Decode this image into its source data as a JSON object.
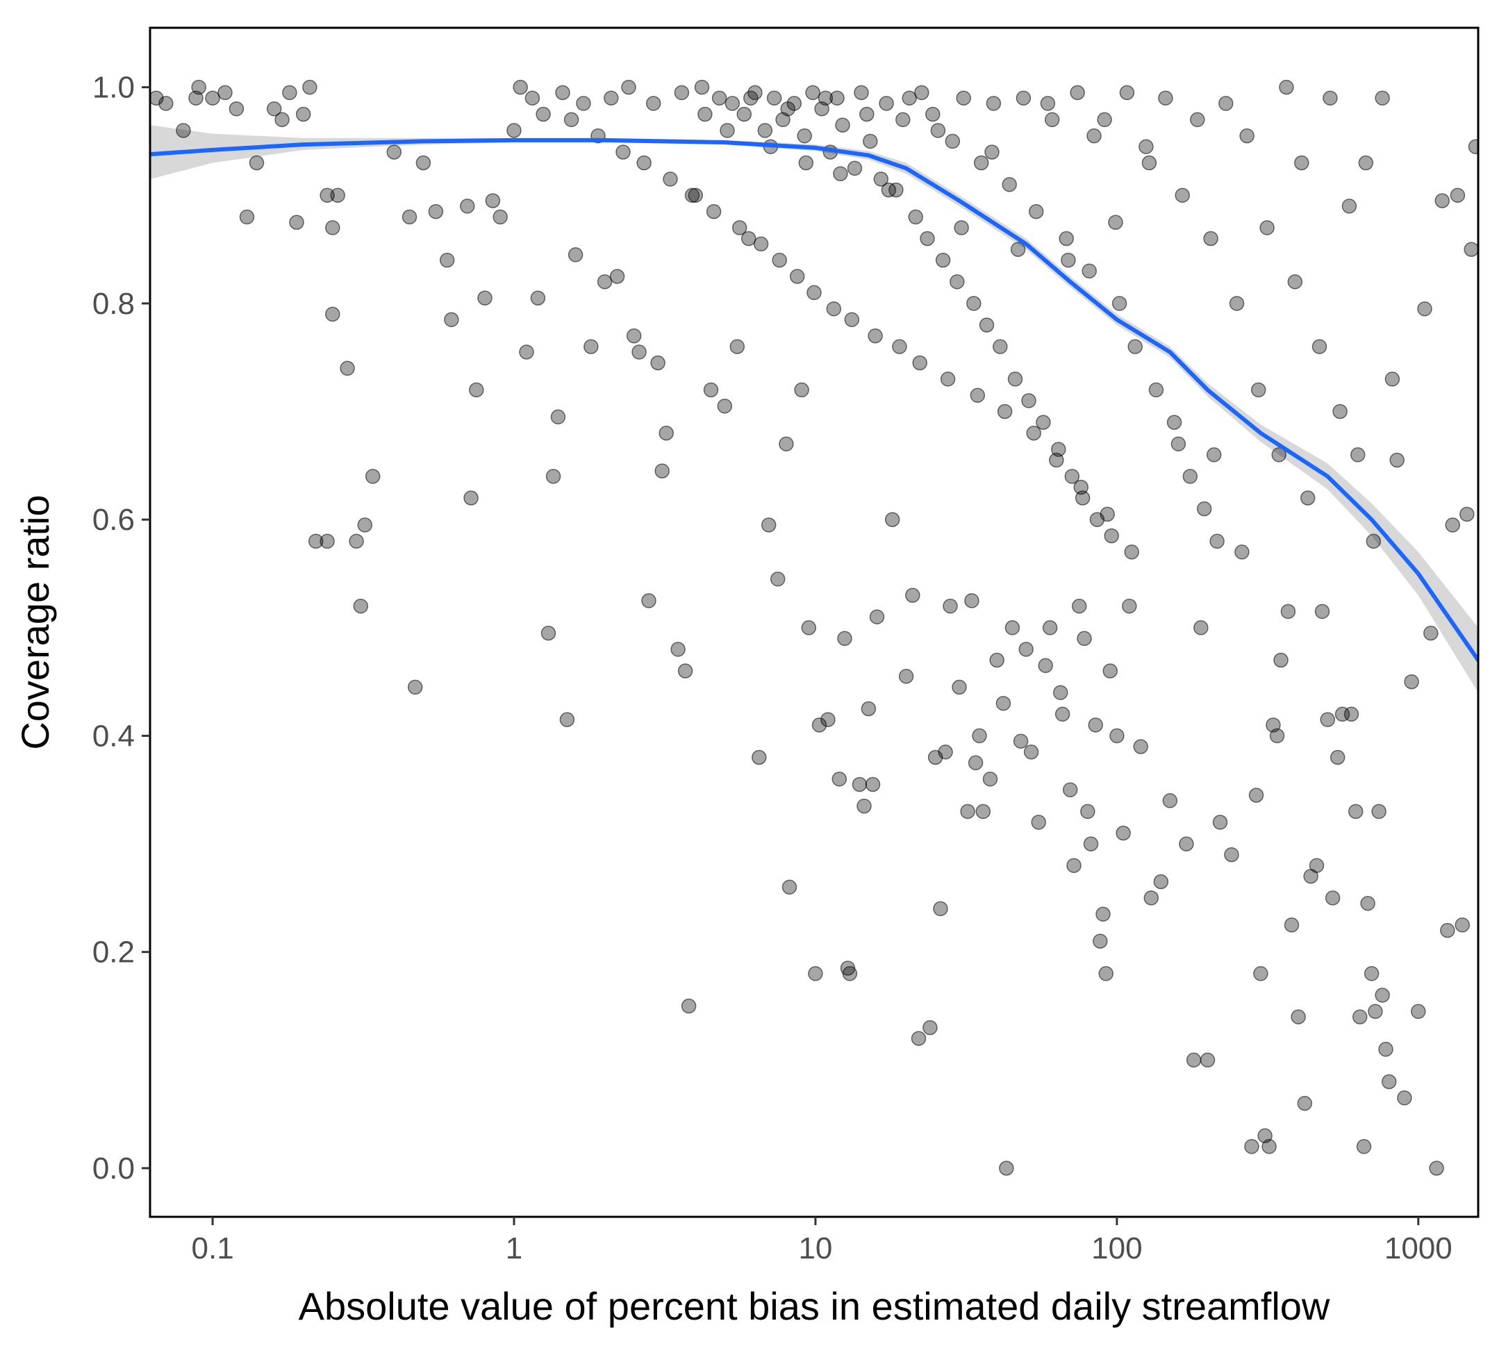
{
  "chart_data": {
    "type": "scatter",
    "xlabel": "Absolute value of percent bias in estimated daily streamflow",
    "ylabel": "Coverage ratio",
    "x_scale": "log10",
    "xlim": [
      0.062,
      1580
    ],
    "ylim": [
      -0.045,
      1.055
    ],
    "x_ticks": [
      0.1,
      1,
      10,
      100,
      1000
    ],
    "x_tick_labels": [
      "0.1",
      "1",
      "10",
      "100",
      "1000"
    ],
    "y_ticks": [
      0.0,
      0.2,
      0.4,
      0.6,
      0.8,
      1.0
    ],
    "y_tick_labels": [
      "0.0",
      "0.2",
      "0.4",
      "0.6",
      "0.8",
      "1.0"
    ],
    "grid": false,
    "legend": "none",
    "point_color": "#000000",
    "point_opacity": 0.35,
    "smooth_color": "#1a66ff",
    "ribbon_color": "#c8c8c8",
    "smooth_curve": {
      "x": [
        0.062,
        0.1,
        0.2,
        0.5,
        1,
        2,
        5,
        10,
        15,
        20,
        30,
        50,
        70,
        100,
        150,
        200,
        300,
        500,
        700,
        1000,
        1580
      ],
      "y": [
        0.938,
        0.942,
        0.947,
        0.95,
        0.951,
        0.951,
        0.949,
        0.944,
        0.937,
        0.925,
        0.895,
        0.855,
        0.82,
        0.785,
        0.755,
        0.72,
        0.68,
        0.64,
        0.6,
        0.55,
        0.47
      ],
      "lower": [
        0.915,
        0.93,
        0.942,
        0.947,
        0.949,
        0.949,
        0.947,
        0.941,
        0.933,
        0.92,
        0.89,
        0.85,
        0.815,
        0.78,
        0.75,
        0.714,
        0.672,
        0.628,
        0.585,
        0.53,
        0.44
      ],
      "upper": [
        0.965,
        0.957,
        0.953,
        0.953,
        0.953,
        0.953,
        0.951,
        0.947,
        0.941,
        0.93,
        0.9,
        0.86,
        0.825,
        0.79,
        0.76,
        0.726,
        0.688,
        0.652,
        0.615,
        0.57,
        0.5
      ]
    },
    "points": [
      [
        0.065,
        0.99
      ],
      [
        0.07,
        0.985
      ],
      [
        0.08,
        0.96
      ],
      [
        0.088,
        0.99
      ],
      [
        0.09,
        1.0
      ],
      [
        0.1,
        0.99
      ],
      [
        0.11,
        0.995
      ],
      [
        0.12,
        0.98
      ],
      [
        0.13,
        0.88
      ],
      [
        0.14,
        0.93
      ],
      [
        0.16,
        0.98
      ],
      [
        0.17,
        0.97
      ],
      [
        0.18,
        0.995
      ],
      [
        0.19,
        0.875
      ],
      [
        0.2,
        0.975
      ],
      [
        0.21,
        1.0
      ],
      [
        0.22,
        0.58
      ],
      [
        0.24,
        0.58
      ],
      [
        0.24,
        0.9
      ],
      [
        0.25,
        0.87
      ],
      [
        0.25,
        0.79
      ],
      [
        0.26,
        0.9
      ],
      [
        0.28,
        0.74
      ],
      [
        0.3,
        0.58
      ],
      [
        0.31,
        0.52
      ],
      [
        0.32,
        0.595
      ],
      [
        0.34,
        0.64
      ],
      [
        0.4,
        0.94
      ],
      [
        0.45,
        0.88
      ],
      [
        0.47,
        0.445
      ],
      [
        0.5,
        0.93
      ],
      [
        0.55,
        0.885
      ],
      [
        0.6,
        0.84
      ],
      [
        0.62,
        0.785
      ],
      [
        0.7,
        0.89
      ],
      [
        0.72,
        0.62
      ],
      [
        0.75,
        0.72
      ],
      [
        0.8,
        0.805
      ],
      [
        0.85,
        0.895
      ],
      [
        0.9,
        0.88
      ],
      [
        1.0,
        0.96
      ],
      [
        1.1,
        0.755
      ],
      [
        1.2,
        0.805
      ],
      [
        1.3,
        0.495
      ],
      [
        1.35,
        0.64
      ],
      [
        1.4,
        0.695
      ],
      [
        1.5,
        0.415
      ],
      [
        1.6,
        0.845
      ],
      [
        1.8,
        0.76
      ],
      [
        2.0,
        0.82
      ],
      [
        2.2,
        0.825
      ],
      [
        2.5,
        0.77
      ],
      [
        2.6,
        0.755
      ],
      [
        2.8,
        0.525
      ],
      [
        3.0,
        0.745
      ],
      [
        3.1,
        0.645
      ],
      [
        3.2,
        0.68
      ],
      [
        3.5,
        0.48
      ],
      [
        3.7,
        0.46
      ],
      [
        3.8,
        0.15
      ],
      [
        4.0,
        0.9
      ],
      [
        4.5,
        0.72
      ],
      [
        5.0,
        0.705
      ],
      [
        5.5,
        0.76
      ],
      [
        6.0,
        0.86
      ],
      [
        6.5,
        0.38
      ],
      [
        7.0,
        0.595
      ],
      [
        7.5,
        0.545
      ],
      [
        8.0,
        0.67
      ],
      [
        8.2,
        0.26
      ],
      [
        9.0,
        0.72
      ],
      [
        9.5,
        0.5
      ],
      [
        10.0,
        0.18
      ],
      [
        10.3,
        0.41
      ],
      [
        11.0,
        0.415
      ],
      [
        12.0,
        0.36
      ],
      [
        12.5,
        0.49
      ],
      [
        12.8,
        0.185
      ],
      [
        13.0,
        0.18
      ],
      [
        14.0,
        0.355
      ],
      [
        14.5,
        0.335
      ],
      [
        15.0,
        0.425
      ],
      [
        15.5,
        0.355
      ],
      [
        16.0,
        0.51
      ],
      [
        18.0,
        0.6
      ],
      [
        20.0,
        0.455
      ],
      [
        21.0,
        0.53
      ],
      [
        22.0,
        0.12
      ],
      [
        24.0,
        0.13
      ],
      [
        25.0,
        0.38
      ],
      [
        26.0,
        0.24
      ],
      [
        27.0,
        0.385
      ],
      [
        28.0,
        0.52
      ],
      [
        30.0,
        0.445
      ],
      [
        32.0,
        0.33
      ],
      [
        33.0,
        0.525
      ],
      [
        34.0,
        0.375
      ],
      [
        35.0,
        0.4
      ],
      [
        36.0,
        0.33
      ],
      [
        38.0,
        0.36
      ],
      [
        40.0,
        0.47
      ],
      [
        42.0,
        0.43
      ],
      [
        43.0,
        0.0
      ],
      [
        45.0,
        0.5
      ],
      [
        48.0,
        0.395
      ],
      [
        50.0,
        0.48
      ],
      [
        52.0,
        0.385
      ],
      [
        55.0,
        0.32
      ],
      [
        58.0,
        0.465
      ],
      [
        60.0,
        0.5
      ],
      [
        65.0,
        0.44
      ],
      [
        66.0,
        0.42
      ],
      [
        70.0,
        0.35
      ],
      [
        72.0,
        0.28
      ],
      [
        75.0,
        0.52
      ],
      [
        78.0,
        0.49
      ],
      [
        80.0,
        0.33
      ],
      [
        82.0,
        0.3
      ],
      [
        85.0,
        0.41
      ],
      [
        88.0,
        0.21
      ],
      [
        90.0,
        0.235
      ],
      [
        92.0,
        0.18
      ],
      [
        95.0,
        0.46
      ],
      [
        100.0,
        0.4
      ],
      [
        105.0,
        0.31
      ],
      [
        110.0,
        0.52
      ],
      [
        120.0,
        0.39
      ],
      [
        130.0,
        0.25
      ],
      [
        140.0,
        0.265
      ],
      [
        150.0,
        0.34
      ],
      [
        160.0,
        0.67
      ],
      [
        170.0,
        0.3
      ],
      [
        180.0,
        0.1
      ],
      [
        190.0,
        0.5
      ],
      [
        200.0,
        0.1
      ],
      [
        210.0,
        0.66
      ],
      [
        220.0,
        0.32
      ],
      [
        240.0,
        0.29
      ],
      [
        260.0,
        0.57
      ],
      [
        280.0,
        0.02
      ],
      [
        290.0,
        0.345
      ],
      [
        300.0,
        0.18
      ],
      [
        310.0,
        0.03
      ],
      [
        320.0,
        0.02
      ],
      [
        330.0,
        0.41
      ],
      [
        340.0,
        0.4
      ],
      [
        350.0,
        0.47
      ],
      [
        370.0,
        0.515
      ],
      [
        380.0,
        0.225
      ],
      [
        400.0,
        0.14
      ],
      [
        420.0,
        0.06
      ],
      [
        440.0,
        0.27
      ],
      [
        460.0,
        0.28
      ],
      [
        480.0,
        0.515
      ],
      [
        500.0,
        0.415
      ],
      [
        520.0,
        0.25
      ],
      [
        540.0,
        0.38
      ],
      [
        560.0,
        0.42
      ],
      [
        600.0,
        0.42
      ],
      [
        620.0,
        0.33
      ],
      [
        640.0,
        0.14
      ],
      [
        660.0,
        0.02
      ],
      [
        680.0,
        0.245
      ],
      [
        700.0,
        0.18
      ],
      [
        720.0,
        0.145
      ],
      [
        740.0,
        0.33
      ],
      [
        760.0,
        0.16
      ],
      [
        780.0,
        0.11
      ],
      [
        800.0,
        0.08
      ],
      [
        850.0,
        0.655
      ],
      [
        900.0,
        0.065
      ],
      [
        950.0,
        0.45
      ],
      [
        1000.0,
        0.145
      ],
      [
        1050.0,
        0.795
      ],
      [
        1100.0,
        0.495
      ],
      [
        1150.0,
        0.0
      ],
      [
        1200.0,
        0.895
      ],
      [
        1250.0,
        0.22
      ],
      [
        1300.0,
        0.595
      ],
      [
        1350.0,
        0.9
      ],
      [
        1400.0,
        0.225
      ],
      [
        1450.0,
        0.605
      ],
      [
        1500.0,
        0.85
      ],
      [
        1550.0,
        0.945
      ],
      [
        4.2,
        1.0
      ],
      [
        4.8,
        0.99
      ],
      [
        5.3,
        0.985
      ],
      [
        5.8,
        0.975
      ],
      [
        6.3,
        0.995
      ],
      [
        6.8,
        0.96
      ],
      [
        7.3,
        0.99
      ],
      [
        7.8,
        0.97
      ],
      [
        8.5,
        0.985
      ],
      [
        9.2,
        0.955
      ],
      [
        9.8,
        0.995
      ],
      [
        10.5,
        0.98
      ],
      [
        11.2,
        0.94
      ],
      [
        11.8,
        0.99
      ],
      [
        12.3,
        0.965
      ],
      [
        13.5,
        0.925
      ],
      [
        14.2,
        0.995
      ],
      [
        15.2,
        0.95
      ],
      [
        16.5,
        0.915
      ],
      [
        17.2,
        0.985
      ],
      [
        18.5,
        0.905
      ],
      [
        19.5,
        0.97
      ],
      [
        21.5,
        0.88
      ],
      [
        22.5,
        0.995
      ],
      [
        23.5,
        0.86
      ],
      [
        24.5,
        0.975
      ],
      [
        26.5,
        0.84
      ],
      [
        28.5,
        0.95
      ],
      [
        29.5,
        0.82
      ],
      [
        31.0,
        0.99
      ],
      [
        33.5,
        0.8
      ],
      [
        35.5,
        0.93
      ],
      [
        37.0,
        0.78
      ],
      [
        39.0,
        0.985
      ],
      [
        41.0,
        0.76
      ],
      [
        44.0,
        0.91
      ],
      [
        46.0,
        0.73
      ],
      [
        49.0,
        0.99
      ],
      [
        51.0,
        0.71
      ],
      [
        54.0,
        0.885
      ],
      [
        57.0,
        0.69
      ],
      [
        61.0,
        0.97
      ],
      [
        64.0,
        0.665
      ],
      [
        68.0,
        0.86
      ],
      [
        71.0,
        0.64
      ],
      [
        74.0,
        0.995
      ],
      [
        77.0,
        0.62
      ],
      [
        81.0,
        0.83
      ],
      [
        86.0,
        0.6
      ],
      [
        91.0,
        0.97
      ],
      [
        96.0,
        0.585
      ],
      [
        102.0,
        0.8
      ],
      [
        108.0,
        0.995
      ],
      [
        115.0,
        0.76
      ],
      [
        125.0,
        0.945
      ],
      [
        135.0,
        0.72
      ],
      [
        145.0,
        0.99
      ],
      [
        155.0,
        0.69
      ],
      [
        165.0,
        0.9
      ],
      [
        175.0,
        0.64
      ],
      [
        185.0,
        0.97
      ],
      [
        195.0,
        0.61
      ],
      [
        205.0,
        0.86
      ],
      [
        215.0,
        0.58
      ],
      [
        230.0,
        0.985
      ],
      [
        250.0,
        0.8
      ],
      [
        270.0,
        0.955
      ],
      [
        295.0,
        0.72
      ],
      [
        315.0,
        0.87
      ],
      [
        345.0,
        0.66
      ],
      [
        365.0,
        1.0
      ],
      [
        390.0,
        0.82
      ],
      [
        410.0,
        0.93
      ],
      [
        430.0,
        0.62
      ],
      [
        470.0,
        0.76
      ],
      [
        510.0,
        0.99
      ],
      [
        550.0,
        0.7
      ],
      [
        590.0,
        0.89
      ],
      [
        630.0,
        0.66
      ],
      [
        670.0,
        0.93
      ],
      [
        710.0,
        0.58
      ],
      [
        760.0,
        0.99
      ],
      [
        820.0,
        0.73
      ],
      [
        1.05,
        1.0
      ],
      [
        1.15,
        0.99
      ],
      [
        1.25,
        0.975
      ],
      [
        1.45,
        0.995
      ],
      [
        1.55,
        0.97
      ],
      [
        1.7,
        0.985
      ],
      [
        1.9,
        0.955
      ],
      [
        2.1,
        0.99
      ],
      [
        2.3,
        0.94
      ],
      [
        2.4,
        1.0
      ],
      [
        2.7,
        0.93
      ],
      [
        2.9,
        0.985
      ],
      [
        3.3,
        0.915
      ],
      [
        3.6,
        0.995
      ],
      [
        3.9,
        0.9
      ],
      [
        4.3,
        0.975
      ],
      [
        4.6,
        0.885
      ],
      [
        5.1,
        0.96
      ],
      [
        5.6,
        0.87
      ],
      [
        6.1,
        0.99
      ],
      [
        6.6,
        0.855
      ],
      [
        7.1,
        0.945
      ],
      [
        7.6,
        0.84
      ],
      [
        8.1,
        0.98
      ],
      [
        8.7,
        0.825
      ],
      [
        9.3,
        0.93
      ],
      [
        9.9,
        0.81
      ],
      [
        10.8,
        0.99
      ],
      [
        11.5,
        0.795
      ],
      [
        12.1,
        0.92
      ],
      [
        13.2,
        0.785
      ],
      [
        14.8,
        0.975
      ],
      [
        15.8,
        0.77
      ],
      [
        17.5,
        0.905
      ],
      [
        19.0,
        0.76
      ],
      [
        20.5,
        0.99
      ],
      [
        22.2,
        0.745
      ],
      [
        25.5,
        0.96
      ],
      [
        27.5,
        0.73
      ],
      [
        30.5,
        0.87
      ],
      [
        34.5,
        0.715
      ],
      [
        38.5,
        0.94
      ],
      [
        42.5,
        0.7
      ],
      [
        47.0,
        0.85
      ],
      [
        53.0,
        0.68
      ],
      [
        59.0,
        0.985
      ],
      [
        63.0,
        0.655
      ],
      [
        69.0,
        0.84
      ],
      [
        76.0,
        0.63
      ],
      [
        84.0,
        0.955
      ],
      [
        93.0,
        0.605
      ],
      [
        99.0,
        0.875
      ],
      [
        112.0,
        0.57
      ],
      [
        128.0,
        0.93
      ]
    ]
  }
}
